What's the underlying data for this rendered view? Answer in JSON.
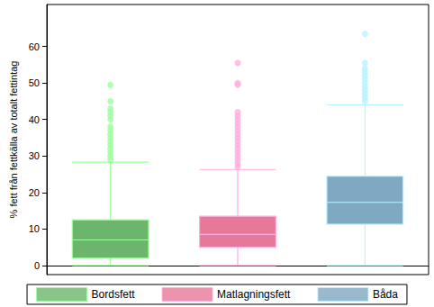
{
  "chart_data": {
    "type": "boxplot",
    "y_label": "% fett från fettkälla av totalt fettintag",
    "ylim": [
      -2.5,
      71.5
    ],
    "yticks": [
      0,
      10,
      20,
      30,
      40,
      50,
      60
    ],
    "grid": false,
    "legend": "bottom",
    "tick_labels": "y",
    "series": [
      {
        "name": "Bordsfett",
        "color": "#6cb56c",
        "min": 0,
        "q1": 2,
        "median": 7,
        "q3": 12.5,
        "max": 28.3,
        "outliers": [
          29,
          30,
          31,
          32,
          33,
          34,
          35,
          36,
          37,
          38,
          40,
          41,
          42,
          43,
          45,
          49.5
        ]
      },
      {
        "name": "Matlagningsfett",
        "color": "#e8789a",
        "min": 0,
        "q1": 5,
        "median": 8.5,
        "q3": 13.5,
        "max": 26.3,
        "outliers": [
          27,
          28,
          29,
          30,
          31,
          32,
          33,
          34,
          35,
          36,
          37,
          38,
          39,
          40,
          41,
          42,
          49.5,
          50,
          55.5
        ]
      },
      {
        "name": "Båda",
        "color": "#7fa8c2",
        "min": 0,
        "q1": 11.3,
        "median": 17.3,
        "q3": 24.5,
        "max": 44,
        "outliers": [
          45,
          46,
          47,
          48,
          49,
          50,
          51,
          52,
          53,
          54,
          55.5,
          63.5
        ]
      }
    ]
  }
}
